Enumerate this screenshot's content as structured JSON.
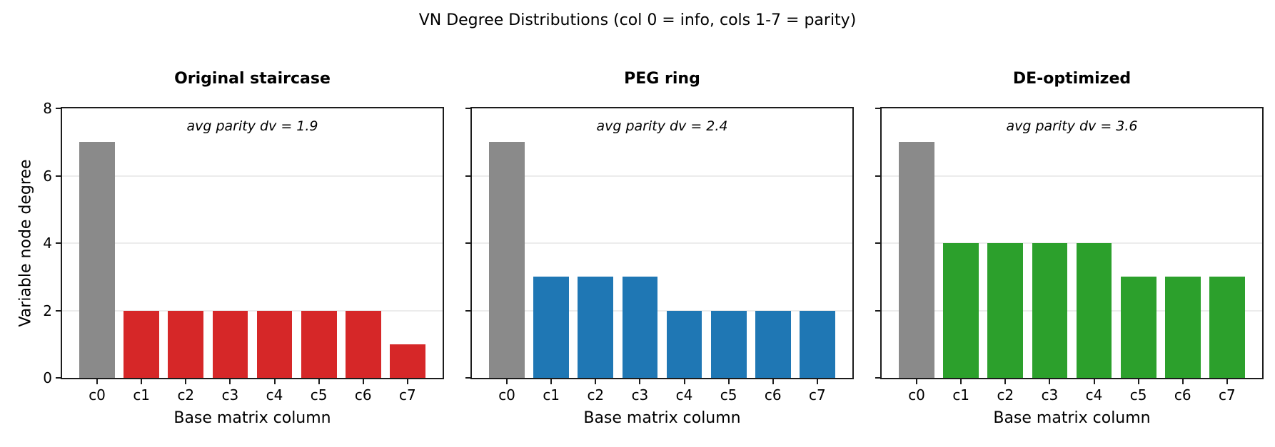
{
  "figure": {
    "title": "VN Degree Distributions (col 0 = info, cols 1-7 = parity)",
    "ylabel": "Variable node degree",
    "xlabel": "Base matrix column"
  },
  "colors": {
    "info_bar": "#8a8a8a",
    "axis": "#1c1c1c",
    "grid": "#ececec",
    "text": "#000000",
    "background": "#ffffff"
  },
  "chart_data": [
    {
      "type": "bar",
      "title": "Original staircase",
      "annotation": "avg parity dv = 1.9",
      "categories": [
        "c0",
        "c1",
        "c2",
        "c3",
        "c4",
        "c5",
        "c6",
        "c7"
      ],
      "values": [
        7,
        2,
        2,
        2,
        2,
        2,
        2,
        1
      ],
      "bar_color": "#d62728",
      "info_bar_color": "#8a8a8a",
      "xlabel": "Base matrix column",
      "ylabel": "Variable node degree",
      "ylim": [
        0,
        8
      ],
      "yticks": [
        0,
        2,
        4,
        6,
        8
      ],
      "grid": true,
      "show_ytick_labels": true,
      "legend": "none"
    },
    {
      "type": "bar",
      "title": "PEG ring",
      "annotation": "avg parity dv = 2.4",
      "categories": [
        "c0",
        "c1",
        "c2",
        "c3",
        "c4",
        "c5",
        "c6",
        "c7"
      ],
      "values": [
        7,
        3,
        3,
        3,
        2,
        2,
        2,
        2
      ],
      "bar_color": "#1f77b4",
      "info_bar_color": "#8a8a8a",
      "xlabel": "Base matrix column",
      "ylabel": "",
      "ylim": [
        0,
        8
      ],
      "yticks": [
        0,
        2,
        4,
        6,
        8
      ],
      "grid": true,
      "show_ytick_labels": false,
      "legend": "none"
    },
    {
      "type": "bar",
      "title": "DE-optimized",
      "annotation": "avg parity dv = 3.6",
      "categories": [
        "c0",
        "c1",
        "c2",
        "c3",
        "c4",
        "c5",
        "c6",
        "c7"
      ],
      "values": [
        7,
        4,
        4,
        4,
        4,
        3,
        3,
        3
      ],
      "bar_color": "#2ca02c",
      "info_bar_color": "#8a8a8a",
      "xlabel": "Base matrix column",
      "ylabel": "",
      "ylim": [
        0,
        8
      ],
      "yticks": [
        0,
        2,
        4,
        6,
        8
      ],
      "grid": true,
      "show_ytick_labels": false,
      "legend": "none"
    }
  ]
}
